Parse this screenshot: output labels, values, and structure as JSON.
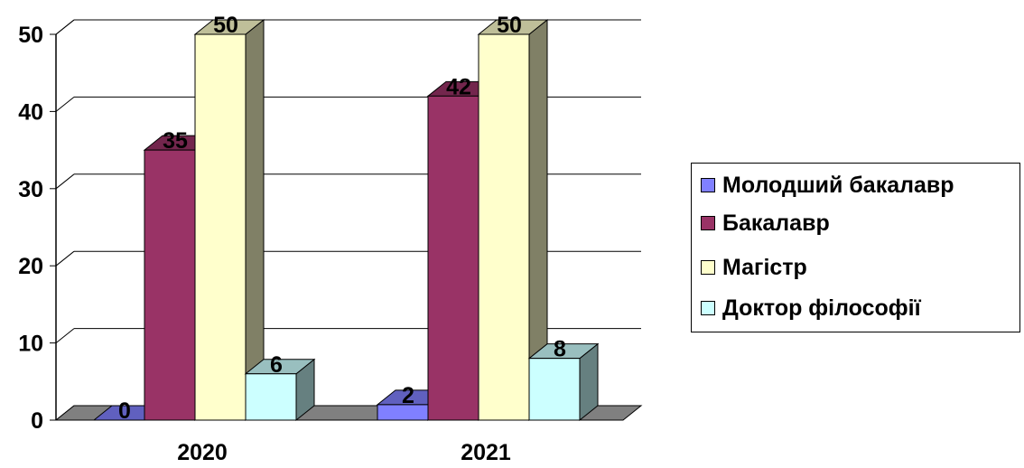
{
  "chart_data": {
    "type": "bar",
    "title": "",
    "xlabel": "",
    "ylabel": "",
    "categories": [
      "2020",
      "2021"
    ],
    "series": [
      {
        "name": "Молодший бакалавр",
        "values": [
          0,
          2
        ],
        "color": "#8080FF"
      },
      {
        "name": "Бакалавр",
        "values": [
          35,
          42
        ],
        "color": "#993366"
      },
      {
        "name": "Магістр",
        "values": [
          50,
          50
        ],
        "color": "#FFFFCC"
      },
      {
        "name": "Доктор філософії",
        "values": [
          6,
          8
        ],
        "color": "#CCFFFF"
      }
    ],
    "ylim": [
      0,
      50
    ],
    "yticks": [
      "0",
      "10",
      "20",
      "30",
      "40",
      "50"
    ],
    "grid": true,
    "legend_position": "right",
    "three_d": true
  }
}
